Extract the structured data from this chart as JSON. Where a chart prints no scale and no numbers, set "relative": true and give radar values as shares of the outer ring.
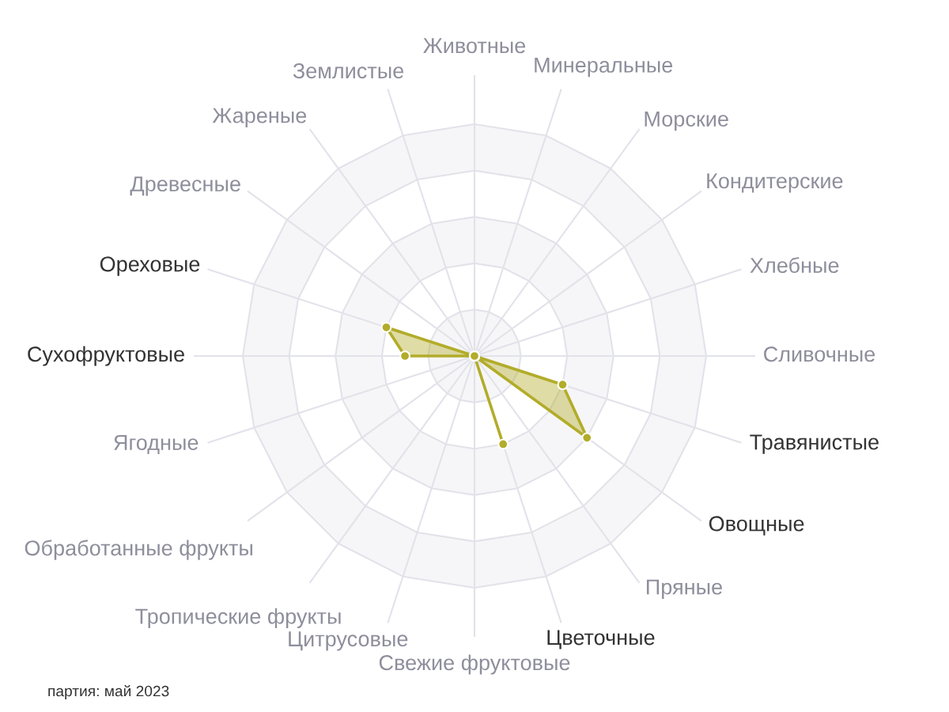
{
  "chart_data": {
    "type": "radar",
    "categories": [
      "Животные",
      "Минеральные",
      "Морские",
      "Кондитерские",
      "Хлебные",
      "Сливочные",
      "Травянистые",
      "Овощные",
      "Пряные",
      "Цветочные",
      "Свежие фруктовые",
      "Цитрусовые",
      "Тропические фрукты",
      "Обработанные фрукты",
      "Ягодные",
      "Сухофруктовые",
      "Ореховые",
      "Древесные",
      "Жареные",
      "Землистые"
    ],
    "series": [
      {
        "color": "#b2ac2a",
        "values": [
          0,
          0,
          0,
          0,
          0,
          0,
          0.4,
          0.6,
          0,
          0.4,
          0,
          0,
          0,
          0,
          0,
          0.3,
          0.4,
          0,
          0,
          0
        ]
      }
    ],
    "relative": true,
    "grid": true,
    "marker": "circle",
    "annotations": [
      "партия: май 2023"
    ]
  }
}
